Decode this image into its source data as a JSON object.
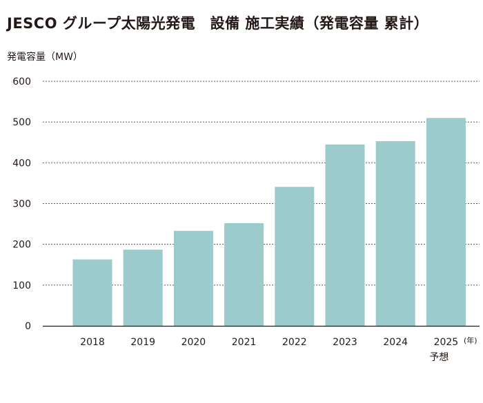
{
  "chart_data": {
    "type": "bar",
    "title": "JESCO グループ太陽光発電　設備 施工実績（発電容量 累計）",
    "ylabel": "発電容量（MW）",
    "x_unit": "(年)",
    "categories": [
      "2018",
      "2019",
      "2020",
      "2021",
      "2022",
      "2023",
      "2024",
      "2025"
    ],
    "category_notes": [
      "",
      "",
      "",
      "",
      "",
      "",
      "",
      "予想"
    ],
    "values": [
      163,
      187,
      233,
      252,
      341,
      445,
      453,
      510
    ],
    "yticks": [
      "0",
      "100",
      "200",
      "300",
      "400",
      "500",
      "600"
    ],
    "ylim": [
      0,
      600
    ],
    "grid": true,
    "bar_color": "#9ccbcd"
  }
}
